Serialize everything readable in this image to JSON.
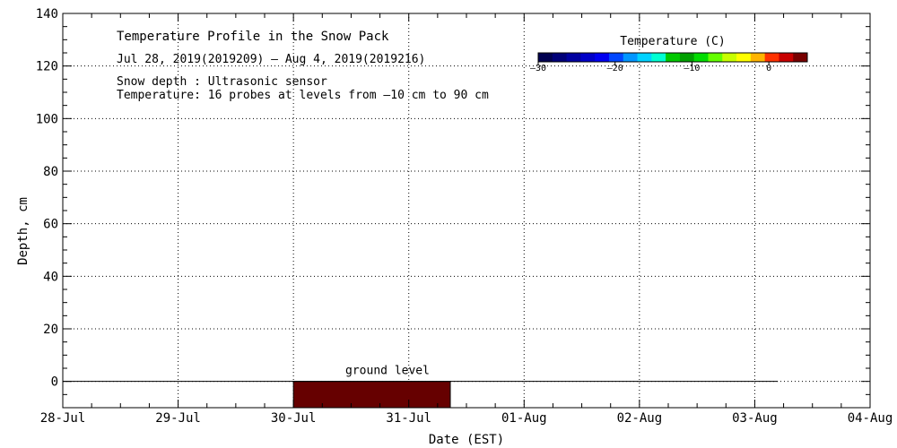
{
  "chart_data": {
    "type": "heatmap",
    "title": "Temperature Profile in the Snow Pack",
    "subtitle": "Jul 28, 2019(2019209) – Aug  4, 2019(2019216)",
    "notes": [
      "Snow depth : Ultrasonic sensor",
      "Temperature: 16 probes at levels from –10 cm to 90 cm"
    ],
    "xlabel": "Date (EST)",
    "ylabel": "Depth, cm",
    "x_ticks": [
      "28-Jul",
      "29-Jul",
      "30-Jul",
      "31-Jul",
      "01-Aug",
      "02-Aug",
      "03-Aug",
      "04-Aug"
    ],
    "x_range_days": [
      0,
      7
    ],
    "ylim": [
      -10,
      140
    ],
    "y_ticks": [
      0,
      20,
      40,
      60,
      80,
      100,
      120,
      140
    ],
    "grid": true,
    "ground_level": {
      "label": "ground level",
      "depth": 0,
      "x_start_day": 0,
      "x_end_day": 6.2
    },
    "filled_region": {
      "x_start_day": 2.0,
      "x_end_day": 3.36,
      "y_from": -10,
      "y_to": 0,
      "color": "#660000"
    },
    "colorbar": {
      "label": "Temperature (C)",
      "placement": "top-right",
      "range": [
        -30,
        5
      ],
      "ticks": [
        -30,
        -20,
        -10,
        0
      ],
      "tick_labels": [
        "–30",
        "–20",
        "–10",
        "0"
      ],
      "colors": [
        "#000050",
        "#000078",
        "#0000a0",
        "#0000c8",
        "#0000f0",
        "#0046ff",
        "#0096ff",
        "#00d2ff",
        "#00ffd2",
        "#00c800",
        "#00a000",
        "#00dc00",
        "#64ff00",
        "#c8ff00",
        "#ffff00",
        "#ffb400",
        "#ff3200",
        "#c80000",
        "#780000"
      ]
    }
  }
}
